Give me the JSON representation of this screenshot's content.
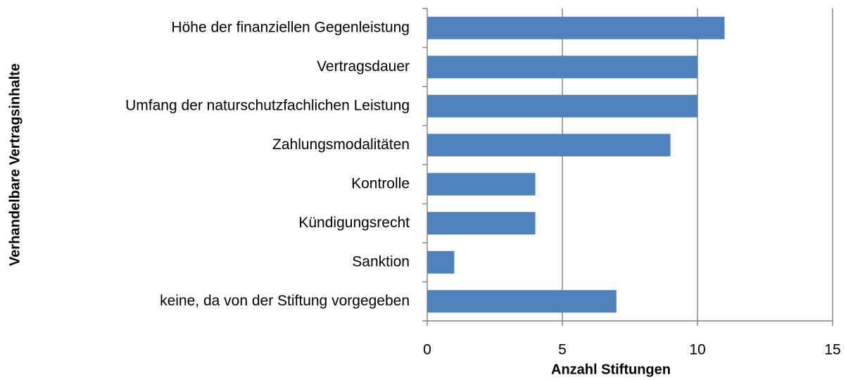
{
  "chart_data": {
    "type": "bar",
    "orientation": "horizontal",
    "xlabel": "Anzahl Stiftungen",
    "ylabel": "Verhandelbare Vertragsinhalte",
    "categories": [
      "Höhe der finanziellen Gegenleistung",
      "Vertragsdauer",
      "Umfang der naturschutzfachlichen Leistung",
      "Zahlungsmodalitäten",
      "Kontrolle",
      "Kündigungsrecht",
      "Sanktion",
      "keine, da von der Stiftung vorgegeben"
    ],
    "values": [
      11,
      10,
      10,
      9,
      4,
      4,
      1,
      7
    ],
    "color": "#4f81bd",
    "xlim": [
      0,
      15
    ],
    "xticks": [
      0,
      5,
      10,
      15
    ],
    "grid": true
  }
}
